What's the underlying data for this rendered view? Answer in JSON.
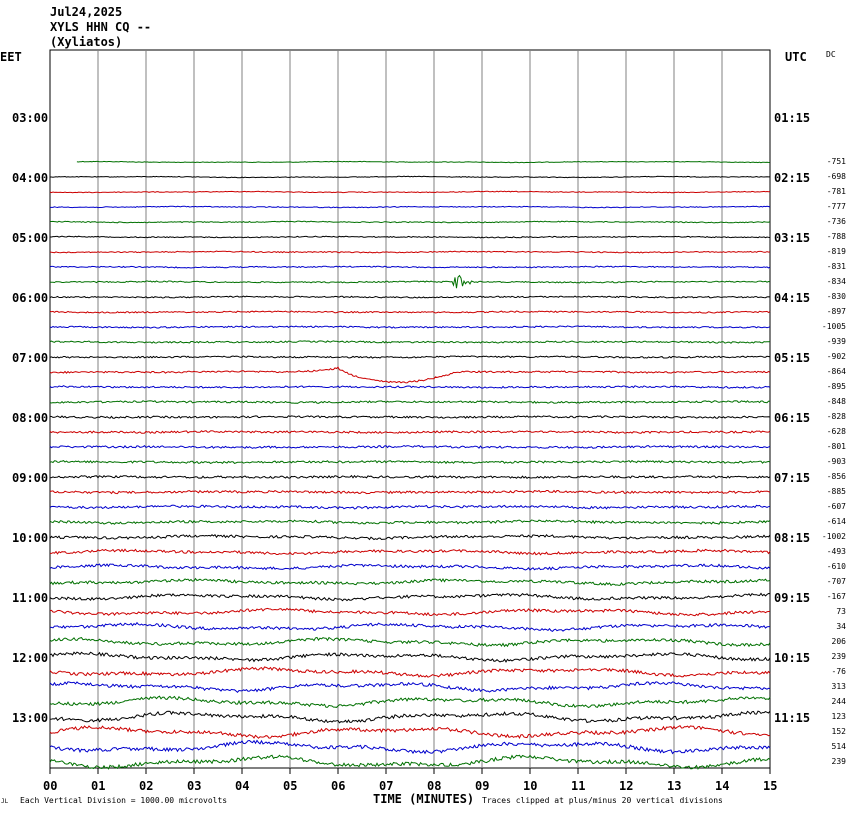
{
  "header": {
    "date": "Jul24,2025",
    "station": "XYLS HHN CQ --",
    "site": "(Xyliatos)"
  },
  "left_zone": "EET",
  "right_zone": "UTC",
  "dc_label": "DC",
  "chart_data": {
    "type": "line",
    "title": "",
    "xlabel": "TIME (MINUTES)",
    "x_ticks": [
      "00",
      "01",
      "02",
      "03",
      "04",
      "05",
      "06",
      "07",
      "08",
      "09",
      "10",
      "11",
      "12",
      "13",
      "14",
      "15"
    ],
    "xlim": [
      0,
      15
    ],
    "left_time_labels": [
      "03:00",
      "04:00",
      "05:00",
      "06:00",
      "07:00",
      "08:00",
      "09:00",
      "10:00",
      "11:00",
      "12:00",
      "13:00"
    ],
    "right_time_labels": [
      "01:15",
      "02:15",
      "03:15",
      "04:15",
      "05:15",
      "06:15",
      "07:15",
      "08:15",
      "09:15",
      "10:15",
      "11:15"
    ],
    "trace_colors": [
      "#007000",
      "#000000",
      "#cc0000",
      "#0000cc"
    ],
    "dc_offsets": [
      "-751",
      "-698",
      "-781",
      "-777",
      "-736",
      "-788",
      "-819",
      "-831",
      "-834",
      "-830",
      "-897",
      "-1005",
      "-939",
      "-902",
      "-864",
      "-895",
      "-848",
      "-828",
      "-628",
      "-801",
      "-903",
      "-856",
      "-885",
      "-607",
      "-614",
      "-1002",
      "-493",
      "-610",
      "-707",
      "-167",
      "73",
      "34",
      "206",
      "239",
      "-76",
      "313",
      "244",
      "123",
      "152",
      "514",
      "239"
    ],
    "events": [
      {
        "trace": 8,
        "minute": 8.5,
        "description": "green burst"
      },
      {
        "trace": 14,
        "minute": 6.0,
        "description": "red step"
      }
    ],
    "grid": true
  },
  "footer": {
    "scale_note": "Each Vertical Division = 1000.00 microvolts",
    "clip_note": "Traces clipped at plus/minus 20 vertical divisions",
    "corner_mark": "JL"
  }
}
